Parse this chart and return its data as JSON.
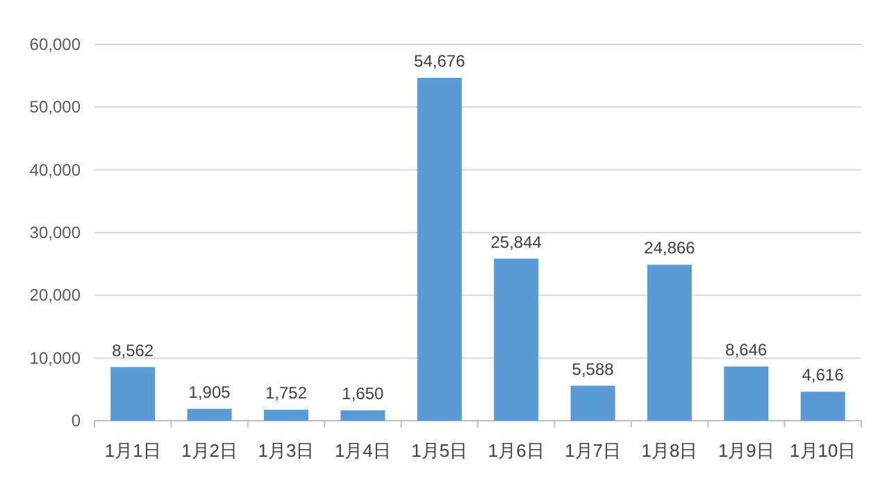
{
  "chart_data": {
    "type": "bar",
    "categories": [
      "1月1日",
      "1月2日",
      "1月3日",
      "1月4日",
      "1月5日",
      "1月6日",
      "1月7日",
      "1月8日",
      "1月9日",
      "1月10日"
    ],
    "values": [
      8562,
      1905,
      1752,
      1650,
      54676,
      25844,
      5588,
      24866,
      8646,
      4616
    ],
    "value_labels": [
      "8,562",
      "1,905",
      "1,752",
      "1,650",
      "54,676",
      "25,844",
      "5,588",
      "24,866",
      "8,646",
      "4,616"
    ],
    "color": "#5b9bd5",
    "ylim": [
      0,
      60000
    ],
    "yticks": [
      {
        "value": 0,
        "label": "0"
      },
      {
        "value": 10000,
        "label": "10,000"
      },
      {
        "value": 20000,
        "label": "20,000"
      },
      {
        "value": 30000,
        "label": "30,000"
      },
      {
        "value": 40000,
        "label": "40,000"
      },
      {
        "value": 50000,
        "label": "50,000"
      },
      {
        "value": 60000,
        "label": "60,000"
      }
    ],
    "grid": "y"
  }
}
